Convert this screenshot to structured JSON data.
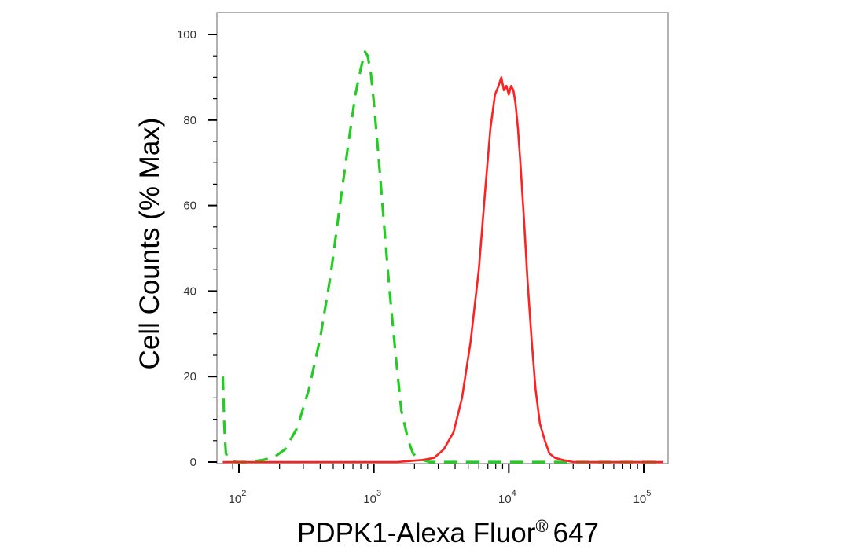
{
  "chart_data": {
    "type": "line",
    "title": "",
    "xlabel": "PDPK1-Alexa Fluor® 647",
    "xlabel_main": "PDPK1-Alexa Fluor",
    "xlabel_sup": "®",
    "xlabel_suffix": "647",
    "ylabel": "Cell Counts (% Max)",
    "x_scale": "log",
    "xlim": [
      75,
      140000
    ],
    "ylim": [
      0,
      105
    ],
    "grid": false,
    "legend": "none",
    "y_ticks": [
      {
        "value": 0,
        "label": "0"
      },
      {
        "value": 20,
        "label": "20"
      },
      {
        "value": 40,
        "label": "40"
      },
      {
        "value": 60,
        "label": "60"
      },
      {
        "value": 80,
        "label": "80"
      },
      {
        "value": 100,
        "label": "100"
      }
    ],
    "x_ticks": [
      {
        "value": 100,
        "base": "10",
        "exp": "2"
      },
      {
        "value": 1000,
        "base": "10",
        "exp": "3"
      },
      {
        "value": 10000,
        "base": "10",
        "exp": "4"
      },
      {
        "value": 100000,
        "base": "10",
        "exp": "5"
      }
    ],
    "series": [
      {
        "color": "#22cc22",
        "style": "dashed",
        "x": [
          76,
          78,
          80,
          85,
          95,
          120,
          150,
          180,
          220,
          270,
          330,
          400,
          480,
          560,
          650,
          730,
          800,
          860,
          900,
          950,
          1000,
          1080,
          1180,
          1300,
          1450,
          1600,
          1800,
          1950,
          2100,
          2300,
          2600,
          3000,
          4000,
          6000,
          10000,
          20000,
          50000,
          140000
        ],
        "y": [
          20,
          8,
          2,
          0.5,
          0,
          0,
          0.5,
          1,
          3,
          8,
          17,
          29,
          44,
          60,
          75,
          86,
          92,
          96,
          95,
          91,
          84,
          72,
          57,
          41,
          25,
          12,
          5,
          2,
          1,
          0.5,
          0,
          0,
          0,
          0,
          0,
          0,
          0,
          0
        ]
      },
      {
        "color": "#ff2020",
        "style": "solid",
        "x": [
          76,
          1500,
          2300,
          2800,
          3300,
          3900,
          4500,
          5200,
          6000,
          6700,
          7300,
          7900,
          8400,
          8800,
          9200,
          9600,
          10000,
          10400,
          10800,
          11200,
          11700,
          12300,
          13000,
          13800,
          14800,
          15800,
          17000,
          18500,
          20000,
          22000,
          25000,
          30000,
          40000,
          140000
        ],
        "y": [
          0,
          0,
          0.5,
          1,
          3,
          7,
          15,
          28,
          45,
          64,
          78,
          86,
          88,
          90,
          87,
          88,
          86,
          88,
          87,
          84,
          78,
          68,
          56,
          42,
          28,
          17,
          9,
          5,
          2,
          1,
          0.5,
          0,
          0,
          0
        ]
      }
    ]
  }
}
